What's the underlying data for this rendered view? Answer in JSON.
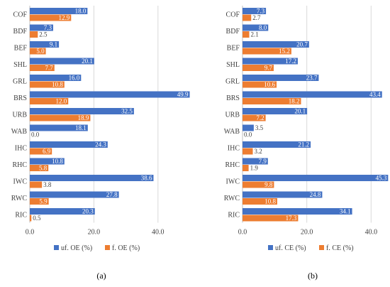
{
  "colors": {
    "unfiltered": "#4472C4",
    "filtered": "#ED7D31",
    "grid": "#D9D9D9",
    "axis": "#BFBFBF"
  },
  "chart_data": [
    {
      "type": "bar",
      "orientation": "horizontal",
      "panel_label": "(a)",
      "categories": [
        "COF",
        "BDF",
        "BEF",
        "SHL",
        "GRL",
        "BRS",
        "URB",
        "WAB",
        "IHC",
        "RHC",
        "IWC",
        "RWC",
        "RIC"
      ],
      "xlim": [
        0,
        50
      ],
      "xticks": [
        "0.0",
        "20.0",
        "40.0"
      ],
      "grid": true,
      "legend_position": "bottom",
      "series": [
        {
          "name": "uf. OE (%)",
          "values": [
            18.0,
            7.3,
            9.1,
            20.1,
            16.0,
            49.9,
            32.5,
            18.1,
            24.3,
            10.8,
            38.6,
            27.8,
            20.3
          ],
          "labels": [
            "18.0",
            "7.3",
            "9.1",
            "20.1",
            "16.0",
            "49.9",
            "32.5",
            "18.1",
            "24.3",
            "10.8",
            "38.6",
            "27.8",
            "20.3"
          ]
        },
        {
          "name": "f. OE (%)",
          "values": [
            12.9,
            2.5,
            5.0,
            7.7,
            10.8,
            12.0,
            18.9,
            0.0,
            6.9,
            5.8,
            3.8,
            5.9,
            0.5
          ],
          "labels": [
            "12.9",
            "2.5",
            "5.0",
            "7.7",
            "10.8",
            "12.0",
            "18.9",
            "0.0",
            "6.9",
            "5.8",
            "3.8",
            "5.9",
            "0.5"
          ]
        }
      ]
    },
    {
      "type": "bar",
      "orientation": "horizontal",
      "panel_label": "(b)",
      "categories": [
        "COF",
        "BDF",
        "BEF",
        "SHL",
        "GRL",
        "BRS",
        "URB",
        "WAB",
        "IHC",
        "RHC",
        "IWC",
        "RWC",
        "RIC"
      ],
      "xlim": [
        0,
        45
      ],
      "xticks": [
        "0.0",
        "20.0",
        "40.0"
      ],
      "grid": true,
      "legend_position": "bottom",
      "series": [
        {
          "name": "uf. CE (%)",
          "values": [
            7.3,
            8.0,
            20.7,
            17.2,
            23.7,
            43.4,
            20.1,
            3.5,
            21.2,
            7.9,
            45.3,
            24.8,
            34.1
          ],
          "labels": [
            "7.3",
            "8.0",
            "20.7",
            "17.2",
            "23.7",
            "43.4",
            "20.1",
            "3.5",
            "21.2",
            "7.9",
            "45.3",
            "24.8",
            "34.1"
          ]
        },
        {
          "name": "f. CE (%)",
          "values": [
            2.7,
            2.1,
            15.2,
            9.7,
            10.6,
            18.2,
            7.2,
            0.0,
            3.2,
            1.9,
            9.8,
            10.8,
            17.3
          ],
          "labels": [
            "2.7",
            "2.1",
            "15.2",
            "9.7",
            "10.6",
            "18.2",
            "7.2",
            "0.0",
            "3.2",
            "1.9",
            "9.8",
            "10.8",
            "17.3"
          ]
        }
      ]
    }
  ]
}
